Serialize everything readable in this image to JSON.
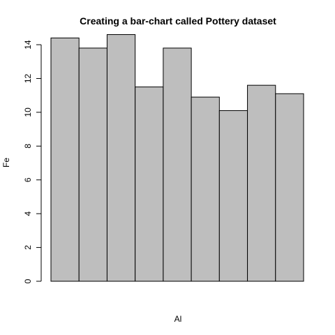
{
  "chart_data": {
    "type": "bar",
    "title": "Creating a bar-chart called Pottery dataset",
    "xlabel": "Al",
    "ylabel": "Fe",
    "categories": [
      "",
      "",
      "",
      "",
      "",
      "",
      "",
      "",
      ""
    ],
    "values": [
      14.4,
      13.8,
      14.6,
      11.5,
      13.8,
      10.9,
      10.1,
      11.6,
      11.1
    ],
    "ylim": [
      0,
      15.2
    ],
    "yticks": [
      "0",
      "2",
      "4",
      "6",
      "8",
      "10",
      "12",
      "14"
    ],
    "bar_fill": "#bebebe",
    "bar_stroke": "#000000",
    "grid": false,
    "legend": "none"
  }
}
